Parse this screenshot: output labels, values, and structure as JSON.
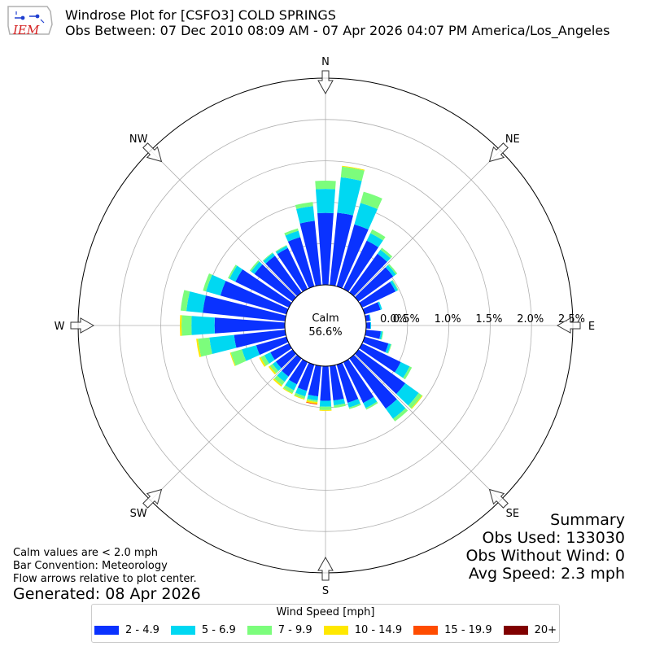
{
  "header": {
    "logo_text": "IEM",
    "title_line1": "Windrose Plot for [CSFO3] COLD SPRINGS",
    "title_line2": "Obs Between: 07 Dec 2010 08:09 AM - 07 Apr 2026 04:07 PM America/Los_Angeles"
  },
  "notes": {
    "line1": "Calm values are < 2.0 mph",
    "line2": "Bar Convention: Meteorology",
    "line3": "Flow arrows relative to plot center.",
    "generated": "Generated: 08 Apr 2026"
  },
  "summary": {
    "title": "Summary",
    "obs_used": "Obs Used: 133030",
    "obs_without_wind": "Obs Without Wind: 0",
    "avg_speed": "Avg Speed: 2.3 mph"
  },
  "legend": {
    "title": "Wind Speed [mph]",
    "items": [
      {
        "label": "2 - 4.9",
        "color": "#0a32ff"
      },
      {
        "label": "5 - 6.9",
        "color": "#00d8f2"
      },
      {
        "label": "7 - 9.9",
        "color": "#7cfd7c"
      },
      {
        "label": "10 - 14.9",
        "color": "#ffe800"
      },
      {
        "label": "15 - 19.9",
        "color": "#ff4c00"
      },
      {
        "label": "20+",
        "color": "#800000"
      }
    ]
  },
  "chart_data": {
    "type": "windrose",
    "calm_label": "Calm",
    "calm_value": "56.6%",
    "calm_percent": 56.6,
    "rlim": [
      0,
      2.5
    ],
    "radial_ticks": [
      "0.0%",
      "0.5%",
      "1.0%",
      "1.5%",
      "2.0%",
      "2.5%"
    ],
    "radial_tick_values": [
      0,
      0.5,
      1.0,
      1.5,
      2.0,
      2.5
    ],
    "compass_labels": [
      "N",
      "NE",
      "E",
      "SE",
      "S",
      "SW",
      "W",
      "NW"
    ],
    "bin_width_degrees": 10,
    "directions_deg": [
      0,
      10,
      20,
      30,
      40,
      50,
      60,
      70,
      80,
      90,
      100,
      110,
      120,
      130,
      140,
      150,
      160,
      170,
      180,
      190,
      200,
      210,
      220,
      230,
      240,
      250,
      260,
      270,
      280,
      290,
      300,
      310,
      320,
      330,
      340,
      350
    ],
    "series": [
      {
        "name": "2 - 4.9",
        "color": "#0a32ff",
        "values": [
          0.87,
          0.88,
          0.78,
          0.65,
          0.58,
          0.52,
          0.45,
          0.2,
          0.05,
          0.05,
          0.18,
          0.3,
          0.52,
          0.7,
          0.75,
          0.55,
          0.48,
          0.42,
          0.42,
          0.37,
          0.33,
          0.3,
          0.27,
          0.25,
          0.25,
          0.38,
          0.62,
          0.85,
          1.0,
          0.83,
          0.72,
          0.57,
          0.55,
          0.55,
          0.62,
          0.78
        ]
      },
      {
        "name": "5 - 6.9",
        "color": "#00d8f2",
        "values": [
          0.29,
          0.43,
          0.27,
          0.1,
          0.06,
          0.04,
          0.03,
          0.02,
          0.01,
          0.01,
          0.02,
          0.03,
          0.12,
          0.2,
          0.15,
          0.07,
          0.06,
          0.06,
          0.07,
          0.05,
          0.07,
          0.08,
          0.08,
          0.05,
          0.08,
          0.18,
          0.3,
          0.28,
          0.2,
          0.18,
          0.08,
          0.05,
          0.04,
          0.03,
          0.08,
          0.18
        ]
      },
      {
        "name": "7 - 9.9",
        "color": "#7cfd7c",
        "values": [
          0.1,
          0.13,
          0.14,
          0.05,
          0.03,
          0.02,
          0.01,
          0.0,
          0.0,
          0.0,
          0.01,
          0.01,
          0.03,
          0.05,
          0.04,
          0.02,
          0.02,
          0.03,
          0.04,
          0.02,
          0.03,
          0.04,
          0.05,
          0.04,
          0.05,
          0.14,
          0.14,
          0.12,
          0.07,
          0.04,
          0.02,
          0.02,
          0.01,
          0.01,
          0.03,
          0.05
        ]
      },
      {
        "name": "10 - 14.9",
        "color": "#ffe800",
        "values": [
          0.0,
          0.01,
          0.0,
          0.0,
          0.0,
          0.0,
          0.0,
          0.0,
          0.0,
          0.0,
          0.0,
          0.0,
          0.0,
          0.01,
          0.0,
          0.0,
          0.0,
          0.0,
          0.01,
          0.02,
          0.01,
          0.01,
          0.02,
          0.02,
          0.02,
          0.01,
          0.02,
          0.02,
          0.0,
          0.0,
          0.0,
          0.0,
          0.0,
          0.0,
          0.0,
          0.0
        ]
      },
      {
        "name": "15 - 19.9",
        "color": "#ff4c00",
        "values": [
          0.0,
          0.0,
          0.0,
          0.0,
          0.0,
          0.0,
          0.0,
          0.0,
          0.0,
          0.0,
          0.0,
          0.0,
          0.0,
          0.0,
          0.0,
          0.0,
          0.0,
          0.0,
          0.0,
          0.01,
          0.0,
          0.0,
          0.0,
          0.0,
          0.0,
          0.0,
          0.0,
          0.0,
          0.0,
          0.0,
          0.0,
          0.0,
          0.0,
          0.0,
          0.0,
          0.0
        ]
      },
      {
        "name": "20+",
        "color": "#800000",
        "values": [
          0.0,
          0.0,
          0.0,
          0.0,
          0.0,
          0.0,
          0.0,
          0.0,
          0.0,
          0.0,
          0.0,
          0.0,
          0.0,
          0.0,
          0.0,
          0.0,
          0.0,
          0.0,
          0.0,
          0.0,
          0.0,
          0.0,
          0.0,
          0.0,
          0.0,
          0.0,
          0.0,
          0.0,
          0.0,
          0.0,
          0.0,
          0.0,
          0.0,
          0.0,
          0.0,
          0.0
        ]
      }
    ]
  }
}
